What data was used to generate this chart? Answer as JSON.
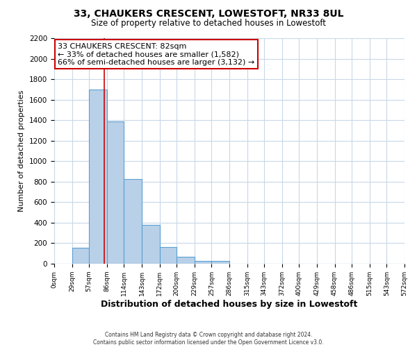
{
  "title": "33, CHAUKERS CRESCENT, LOWESTOFT, NR33 8UL",
  "subtitle": "Size of property relative to detached houses in Lowestoft",
  "xlabel": "Distribution of detached houses by size in Lowestoft",
  "ylabel": "Number of detached properties",
  "bar_values": [
    0,
    157,
    1700,
    1390,
    825,
    380,
    160,
    65,
    25,
    25,
    0,
    0,
    0,
    0,
    0,
    0,
    0,
    0,
    0,
    0
  ],
  "bin_edges": [
    0,
    29,
    57,
    86,
    114,
    143,
    172,
    200,
    229,
    257,
    286,
    315,
    343,
    372,
    400,
    429,
    458,
    486,
    515,
    543,
    572
  ],
  "tick_labels": [
    "0sqm",
    "29sqm",
    "57sqm",
    "86sqm",
    "114sqm",
    "143sqm",
    "172sqm",
    "200sqm",
    "229sqm",
    "257sqm",
    "286sqm",
    "315sqm",
    "343sqm",
    "372sqm",
    "400sqm",
    "429sqm",
    "458sqm",
    "486sqm",
    "515sqm",
    "543sqm",
    "572sqm"
  ],
  "bar_color": "#b8d0e8",
  "bar_edge_color": "#5a9fd4",
  "ylim": [
    0,
    2200
  ],
  "yticks": [
    0,
    200,
    400,
    600,
    800,
    1000,
    1200,
    1400,
    1600,
    1800,
    2000,
    2200
  ],
  "property_line_x": 82,
  "annotation_title": "33 CHAUKERS CRESCENT: 82sqm",
  "annotation_line1": "← 33% of detached houses are smaller (1,582)",
  "annotation_line2": "66% of semi-detached houses are larger (3,132) →",
  "annotation_box_color": "#ffffff",
  "annotation_box_edge_color": "#cc0000",
  "red_line_color": "#cc0000",
  "footer_line1": "Contains HM Land Registry data © Crown copyright and database right 2024.",
  "footer_line2": "Contains public sector information licensed under the Open Government Licence v3.0.",
  "background_color": "#ffffff",
  "grid_color": "#c8d8e8"
}
